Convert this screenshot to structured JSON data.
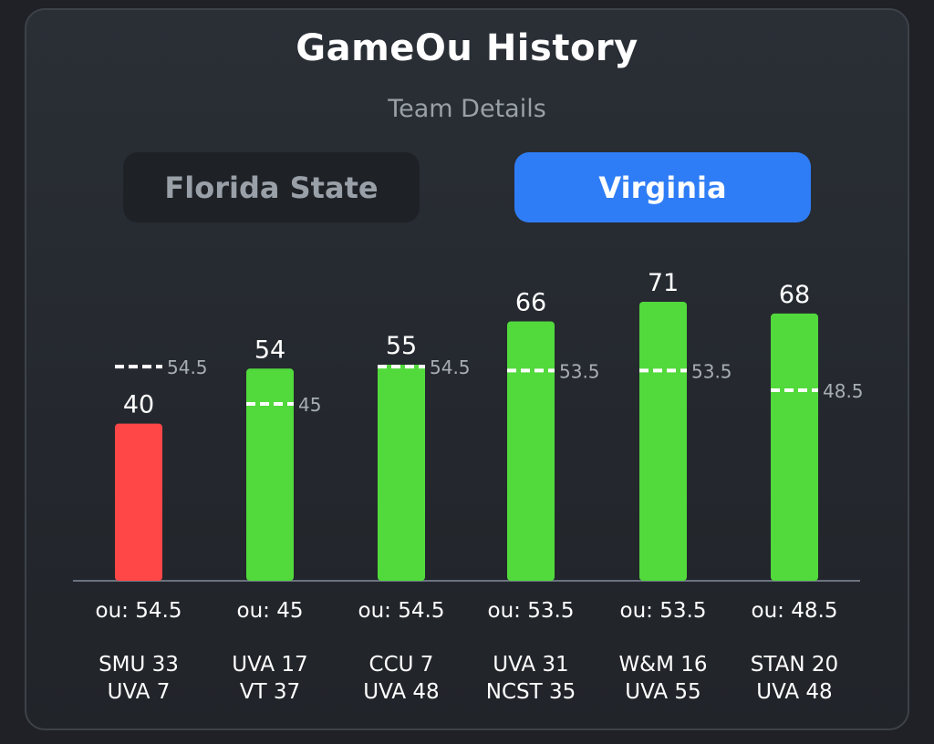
{
  "header": {
    "title": "GameOu History",
    "subtitle": "Team Details"
  },
  "tabs": [
    {
      "label": "Florida State",
      "active": false
    },
    {
      "label": "Virginia",
      "active": true
    }
  ],
  "colors": {
    "over": "#52d93c",
    "under": "#ff4747",
    "accent": "#2f7df6"
  },
  "chart_data": {
    "type": "bar",
    "categories": [
      "SMU 33 / UVA 7",
      "UVA 17 / VT 37",
      "CCU 7 / UVA 48",
      "UVA 31 / NCST 35",
      "W&M 16 / UVA 55",
      "STAN 20 / UVA 48"
    ],
    "values": [
      40,
      54,
      55,
      66,
      71,
      68
    ],
    "ou_lines": [
      54.5,
      45,
      54.5,
      53.5,
      53.5,
      48.5
    ],
    "ou_labels": [
      "ou: 54.5",
      "ou: 45",
      "ou: 54.5",
      "ou: 53.5",
      "ou: 53.5",
      "ou: 48.5"
    ],
    "matchups": [
      [
        "SMU 33",
        "UVA 7"
      ],
      [
        "UVA 17",
        "VT 37"
      ],
      [
        "CCU 7",
        "UVA 48"
      ],
      [
        "UVA 31",
        "NCST 35"
      ],
      [
        "W&M 16",
        "UVA 55"
      ],
      [
        "STAN 20",
        "UVA 48"
      ]
    ],
    "ylim": [
      0,
      71
    ],
    "grid": false,
    "legend": "none"
  }
}
